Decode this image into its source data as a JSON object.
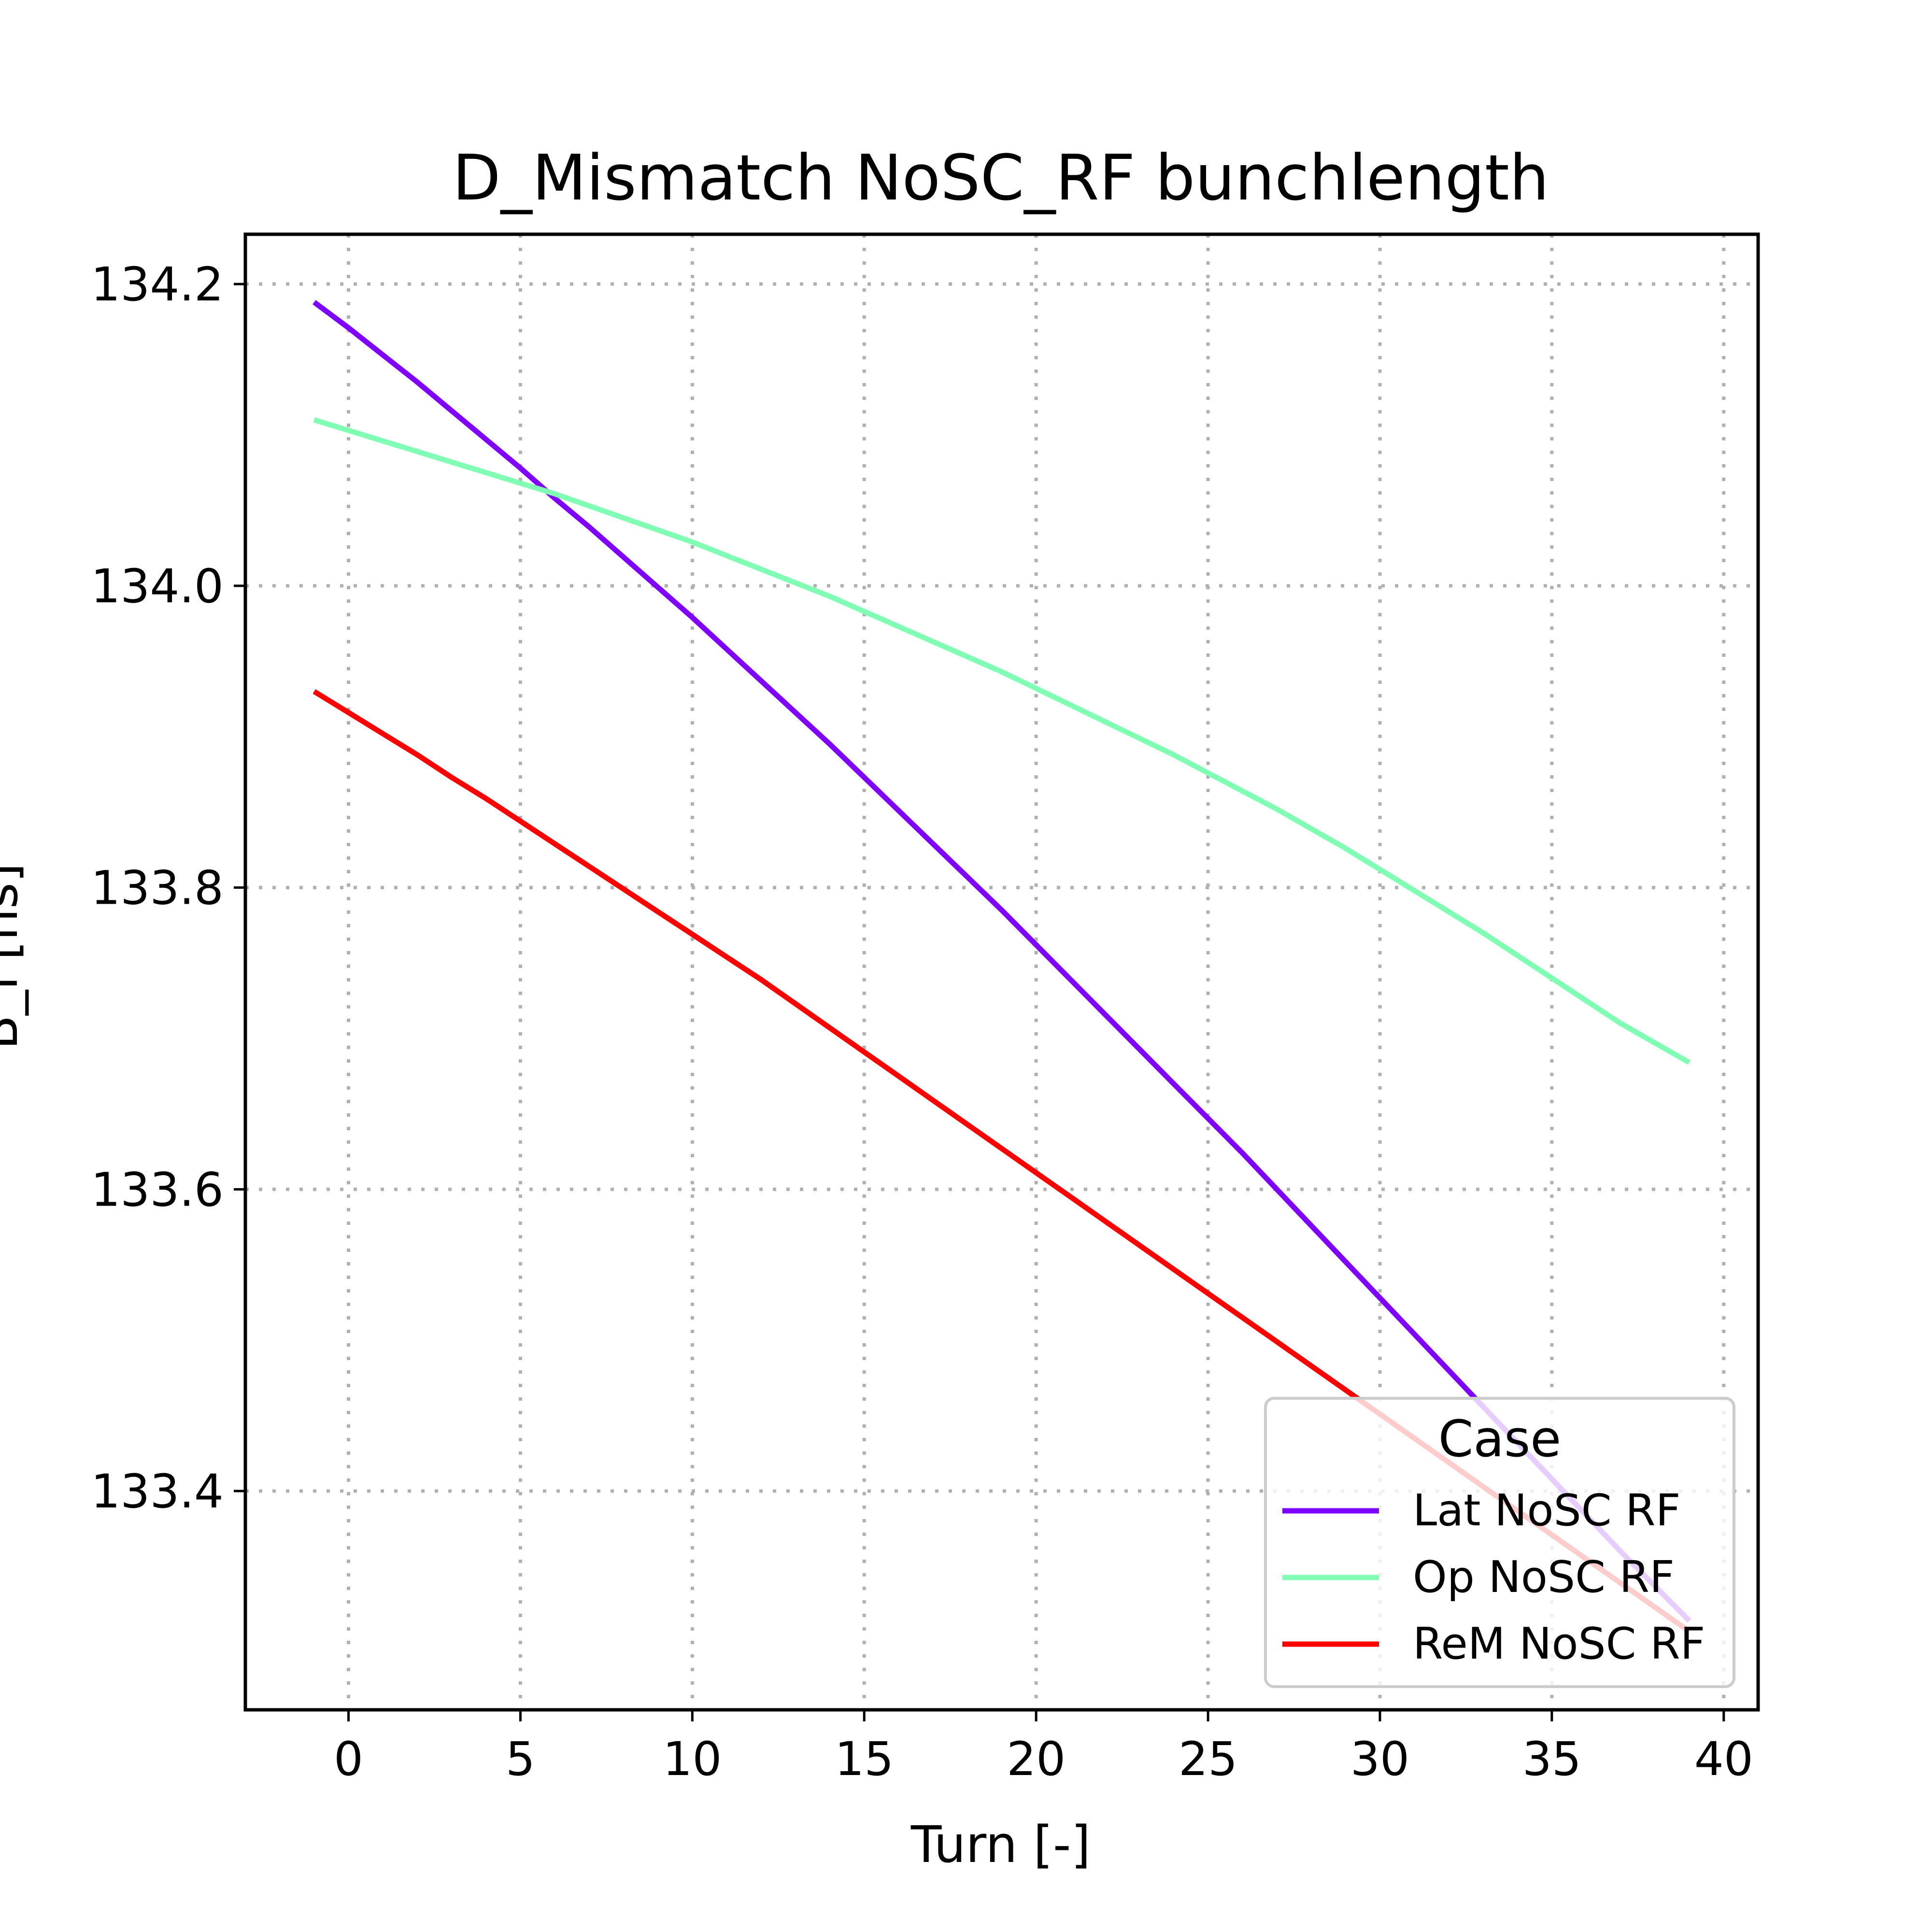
{
  "chart_data": {
    "type": "line",
    "title": "D_Mismatch NoSC_RF bunchlength",
    "xlabel": "Turn [-]",
    "ylabel": "B_l [ns]",
    "xlim": [
      -3,
      41
    ],
    "ylim": [
      133.255,
      134.233
    ],
    "xticks": [
      0,
      5,
      10,
      15,
      20,
      25,
      30,
      35,
      40
    ],
    "yticks": [
      133.4,
      133.6,
      133.8,
      134.0,
      134.2
    ],
    "grid": true,
    "legend": {
      "title": "Case",
      "position": "lower-right"
    },
    "x": [
      -1,
      0,
      1,
      2,
      3,
      4,
      5,
      6,
      7,
      8,
      9,
      10,
      11,
      12,
      13,
      14,
      15,
      16,
      17,
      18,
      19,
      20,
      21,
      22,
      23,
      24,
      25,
      26,
      27,
      28,
      29,
      30,
      31,
      32,
      33,
      34,
      35,
      36,
      37,
      38,
      39
    ],
    "series": [
      {
        "name": "Lat NoSC RF",
        "color": "#8000ff",
        "values": [
          134.188,
          134.171,
          134.153,
          134.135,
          134.116,
          134.097,
          134.078,
          134.058,
          134.039,
          134.019,
          133.999,
          133.979,
          133.958,
          133.937,
          133.916,
          133.895,
          133.873,
          133.851,
          133.829,
          133.807,
          133.785,
          133.762,
          133.739,
          133.716,
          133.693,
          133.67,
          133.647,
          133.624,
          133.6,
          133.576,
          133.552,
          133.528,
          133.504,
          133.48,
          133.456,
          133.432,
          133.408,
          133.384,
          133.36,
          133.337,
          133.314
        ]
      },
      {
        "name": "Op NoSC RF",
        "color": "#80ffb4",
        "values": [
          134.11,
          134.103,
          134.096,
          134.089,
          134.082,
          134.075,
          134.068,
          134.061,
          134.053,
          134.045,
          134.037,
          134.029,
          134.02,
          134.011,
          134.002,
          133.993,
          133.983,
          133.973,
          133.963,
          133.953,
          133.943,
          133.932,
          133.921,
          133.91,
          133.899,
          133.888,
          133.876,
          133.864,
          133.852,
          133.839,
          133.826,
          133.812,
          133.798,
          133.784,
          133.77,
          133.755,
          133.74,
          133.725,
          133.71,
          133.697,
          133.684
        ]
      },
      {
        "name": "ReM NoSC RF",
        "color": "#ff0000",
        "values": [
          133.93,
          133.916,
          133.902,
          133.888,
          133.873,
          133.859,
          133.844,
          133.829,
          133.814,
          133.799,
          133.784,
          133.769,
          133.754,
          133.739,
          133.723,
          133.707,
          133.691,
          133.675,
          133.659,
          133.643,
          133.627,
          133.611,
          133.595,
          133.579,
          133.563,
          133.547,
          133.531,
          133.515,
          133.499,
          133.483,
          133.467,
          133.451,
          133.435,
          133.419,
          133.403,
          133.387,
          133.371,
          133.355,
          133.339,
          133.323,
          133.307
        ]
      }
    ]
  }
}
